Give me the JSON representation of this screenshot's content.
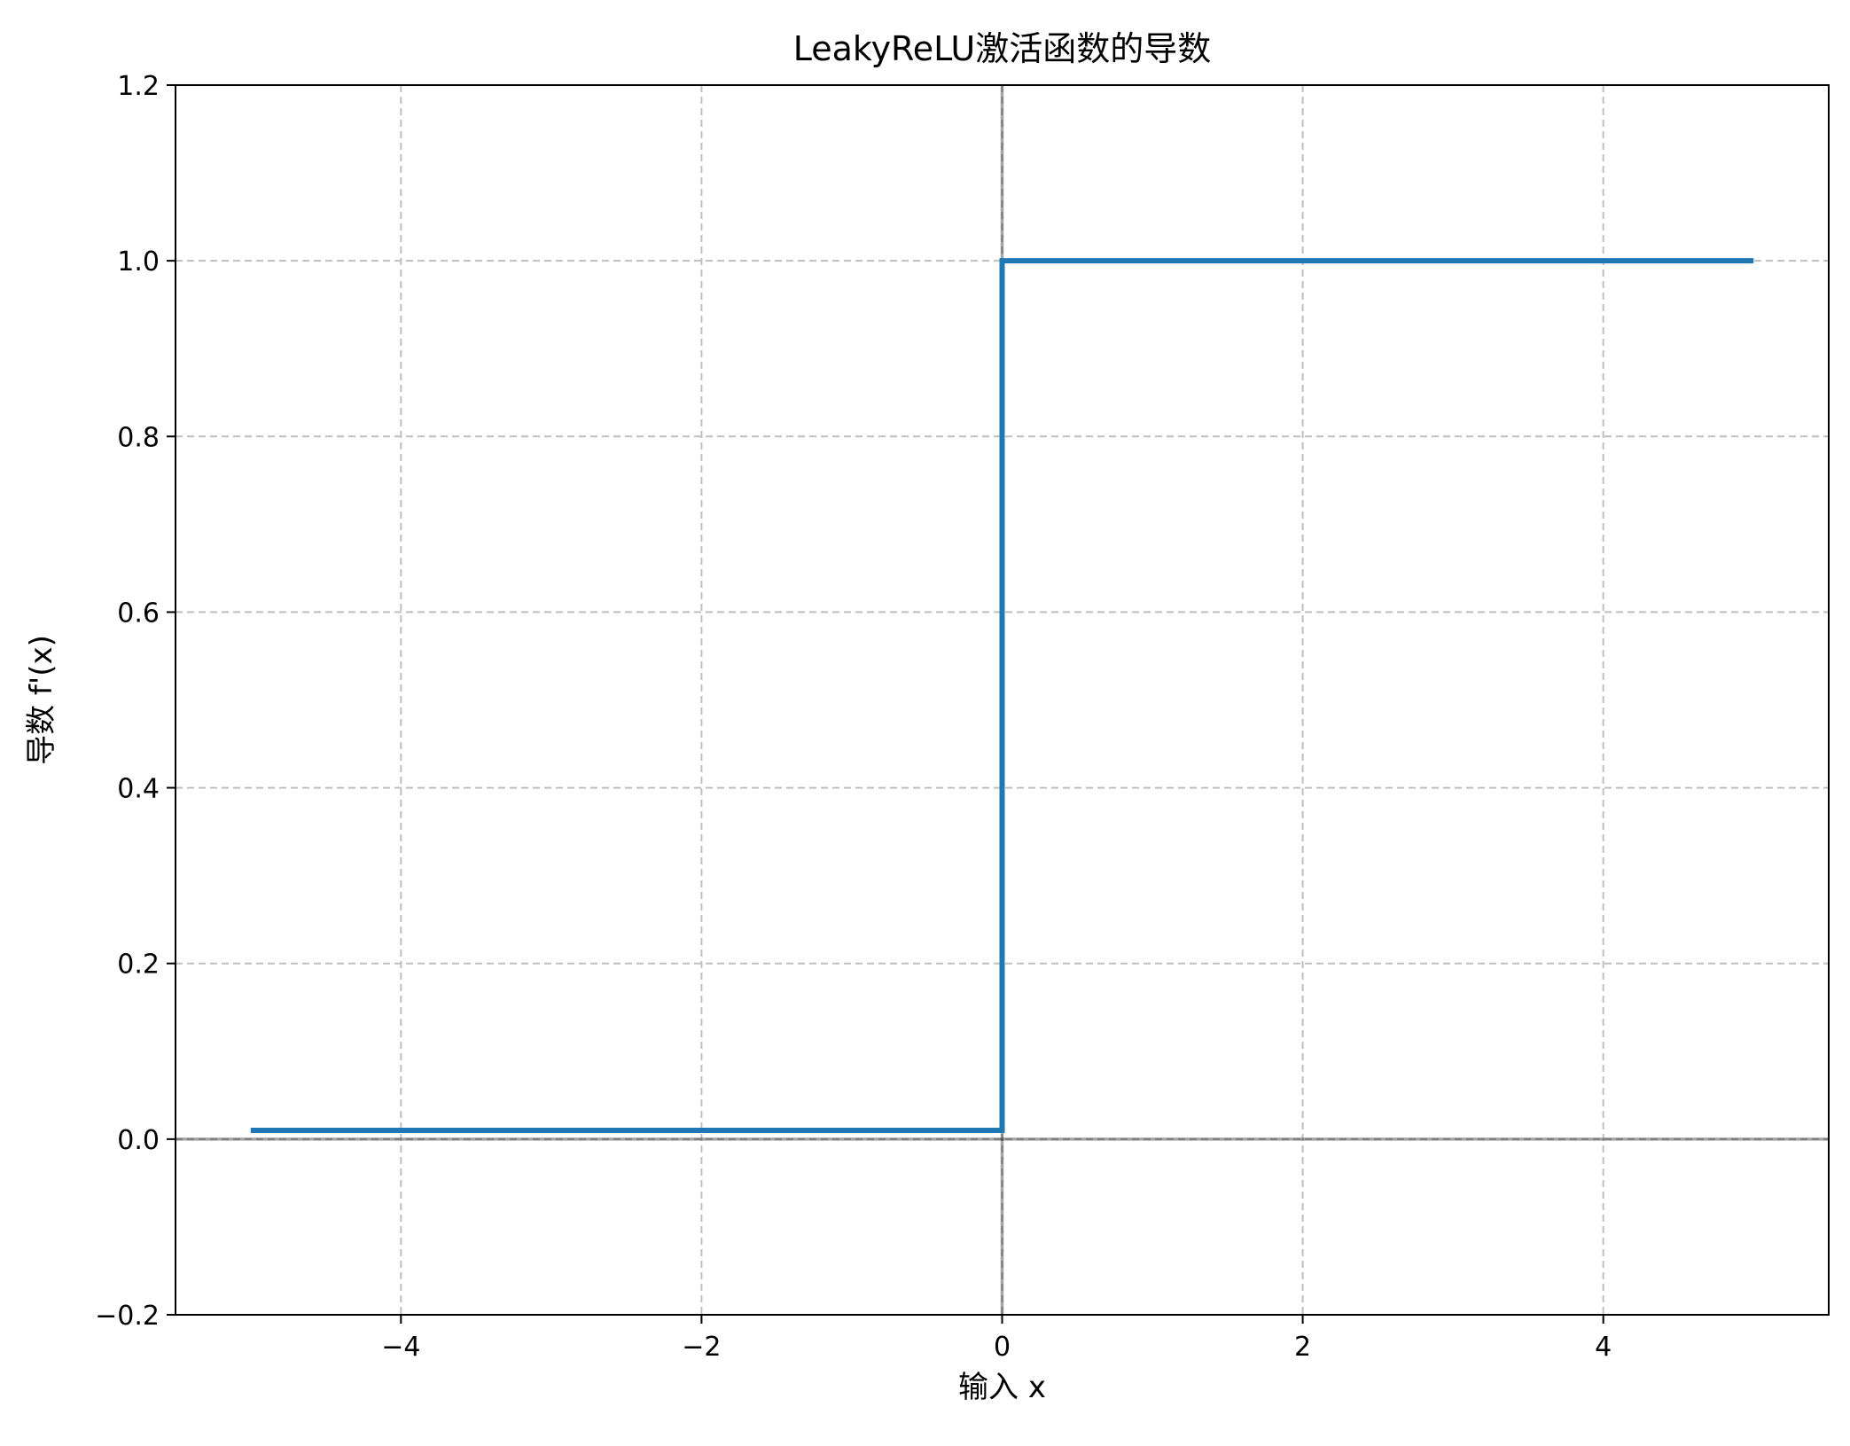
{
  "chart_data": {
    "type": "line",
    "title": "LeakyReLU激活函数的导数",
    "xlabel": "输入 x",
    "ylabel": "导数 f'(x)",
    "xlim": [
      -5.5,
      5.5
    ],
    "ylim": [
      -0.2,
      1.2
    ],
    "xticks": [
      -4,
      -2,
      0,
      2,
      4
    ],
    "xtick_labels": [
      "−4",
      "−2",
      "0",
      "2",
      "4"
    ],
    "yticks": [
      -0.2,
      0.0,
      0.2,
      0.4,
      0.6,
      0.8,
      1.0,
      1.2
    ],
    "ytick_labels": [
      "−0.2",
      "0.0",
      "0.2",
      "0.4",
      "0.6",
      "0.8",
      "1.0",
      "1.2"
    ],
    "grid": true,
    "reference_lines": {
      "x": 0,
      "y": 0
    },
    "series": [
      {
        "color": "#1f77b4",
        "x": [
          -5,
          0,
          0,
          5
        ],
        "y": [
          0.01,
          0.01,
          1.0,
          1.0
        ]
      }
    ]
  }
}
